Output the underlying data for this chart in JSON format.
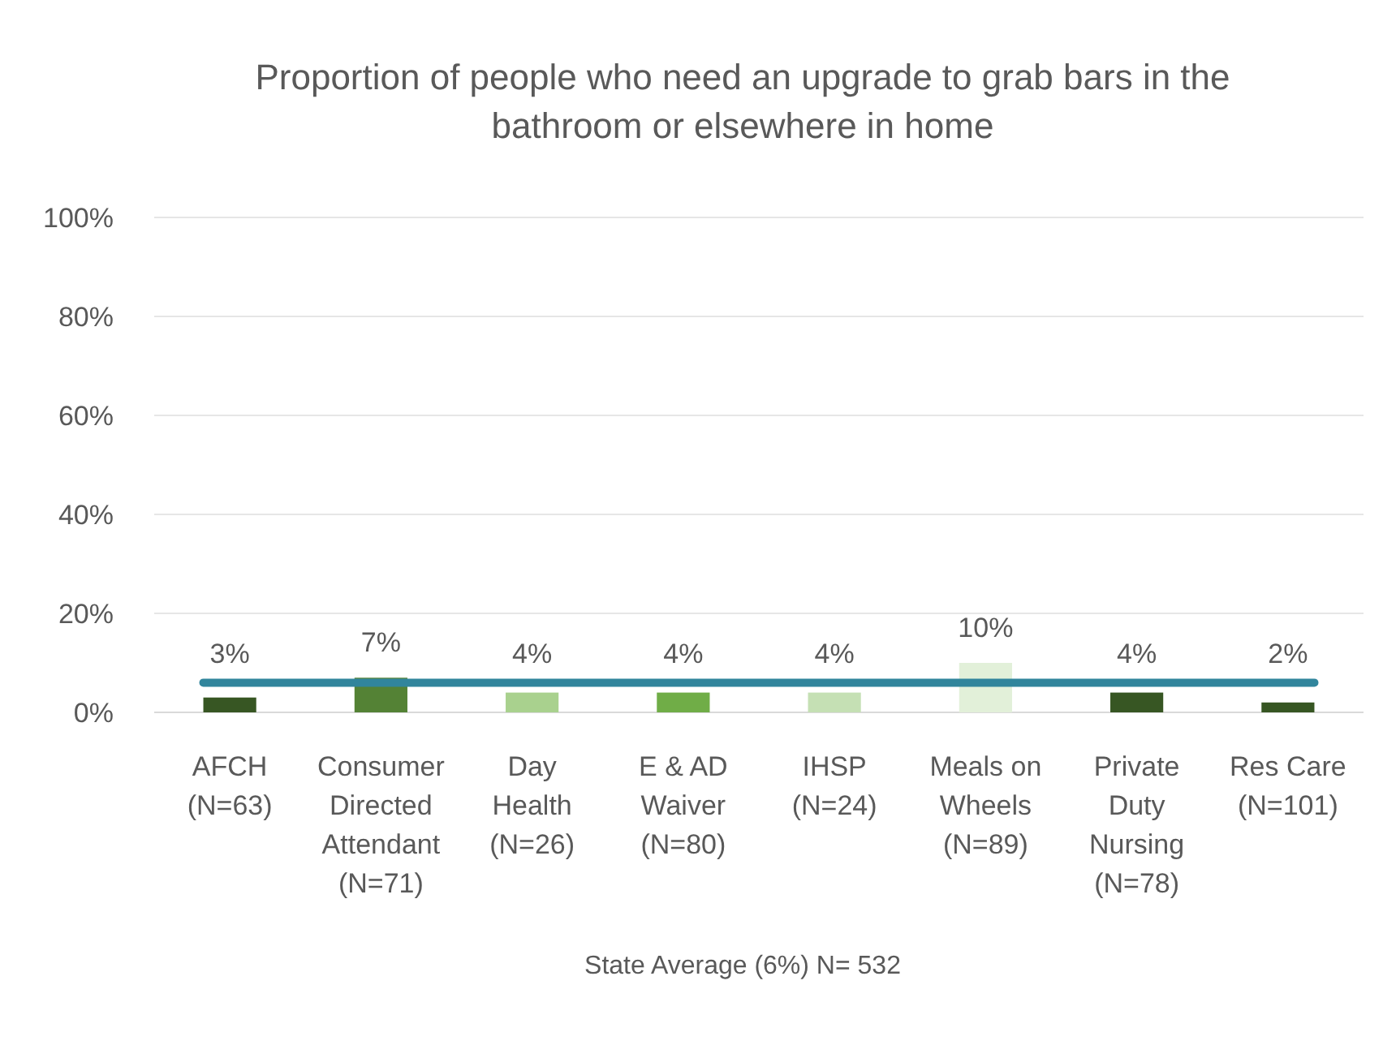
{
  "chart_data": {
    "type": "bar",
    "title": "Proportion of people who need an upgrade to grab bars in the\nbathroom or elsewhere in home",
    "categories": [
      "AFCH\n(N=63)",
      "Consumer\nDirected\nAttendant\n(N=71)",
      "Day\nHealth\n(N=26)",
      "E & AD\nWaiver\n(N=80)",
      "IHSP\n(N=24)",
      "Meals on\nWheels\n(N=89)",
      "Private\nDuty\nNursing\n(N=78)",
      "Res Care\n(N=101)"
    ],
    "values": [
      3,
      7,
      4,
      4,
      4,
      10,
      4,
      2
    ],
    "colors": [
      "#375623",
      "#548235",
      "#a9d18e",
      "#70ad47",
      "#c5e0b4",
      "#e2f0d9",
      "#375623",
      "#375623"
    ],
    "ylim": [
      0,
      100
    ],
    "yticks": [
      {
        "value": 0,
        "label": "0%"
      },
      {
        "value": 20,
        "label": "20%"
      },
      {
        "value": 40,
        "label": "40%"
      },
      {
        "value": 60,
        "label": "60%"
      },
      {
        "value": 80,
        "label": "80%"
      },
      {
        "value": 100,
        "label": "100%"
      }
    ],
    "value_labels": [
      "3%",
      "7%",
      "4%",
      "4%",
      "4%",
      "10%",
      "4%",
      "2%"
    ],
    "grid": true,
    "annotations": [
      "State Average (6%) N= 532"
    ],
    "ref_lines": [
      {
        "axis": "y",
        "value": 6,
        "color": "#31859c"
      }
    ]
  }
}
